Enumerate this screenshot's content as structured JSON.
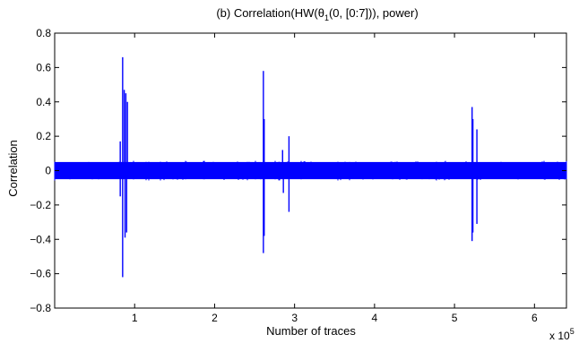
{
  "chart_data": {
    "type": "line",
    "title_prefix": "(b) Correlation(HW(θ",
    "title_sub": "1",
    "title_suffix": "(0, [0:7])), power)",
    "xlabel": "Number of traces",
    "ylabel": "Correlation",
    "x_multiplier": "x 10",
    "x_multiplier_exp": "5",
    "xlim": [
      0,
      6.4
    ],
    "ylim": [
      -0.8,
      0.8
    ],
    "xticks": [
      1,
      2,
      3,
      4,
      5,
      6
    ],
    "xtick_labels": [
      "1",
      "2",
      "3",
      "4",
      "5",
      "6"
    ],
    "yticks": [
      -0.8,
      -0.6,
      -0.4,
      -0.2,
      0,
      0.2,
      0.4,
      0.6,
      0.8
    ],
    "ytick_labels": [
      "−0.8",
      "−0.6",
      "−0.4",
      "−0.2",
      "0",
      "0.2",
      "0.4",
      "0.6",
      "0.8"
    ],
    "grid": false,
    "line_color": "#0000ff",
    "noise_band": [
      -0.05,
      0.05
    ],
    "spikes": [
      {
        "x": 0.82,
        "y": 0.17
      },
      {
        "x": 0.82,
        "y": -0.15
      },
      {
        "x": 0.85,
        "y": 0.66
      },
      {
        "x": 0.85,
        "y": -0.62
      },
      {
        "x": 0.87,
        "y": 0.47
      },
      {
        "x": 0.88,
        "y": -0.39
      },
      {
        "x": 0.89,
        "y": 0.45
      },
      {
        "x": 0.9,
        "y": -0.36
      },
      {
        "x": 0.91,
        "y": 0.4
      },
      {
        "x": 2.61,
        "y": 0.58
      },
      {
        "x": 2.61,
        "y": -0.48
      },
      {
        "x": 2.62,
        "y": 0.3
      },
      {
        "x": 2.62,
        "y": -0.38
      },
      {
        "x": 2.85,
        "y": 0.12
      },
      {
        "x": 2.86,
        "y": -0.13
      },
      {
        "x": 2.93,
        "y": 0.2
      },
      {
        "x": 2.93,
        "y": -0.24
      },
      {
        "x": 5.22,
        "y": 0.37
      },
      {
        "x": 5.22,
        "y": -0.41
      },
      {
        "x": 5.23,
        "y": 0.3
      },
      {
        "x": 5.23,
        "y": -0.36
      },
      {
        "x": 5.28,
        "y": 0.24
      },
      {
        "x": 5.28,
        "y": -0.31
      }
    ]
  }
}
